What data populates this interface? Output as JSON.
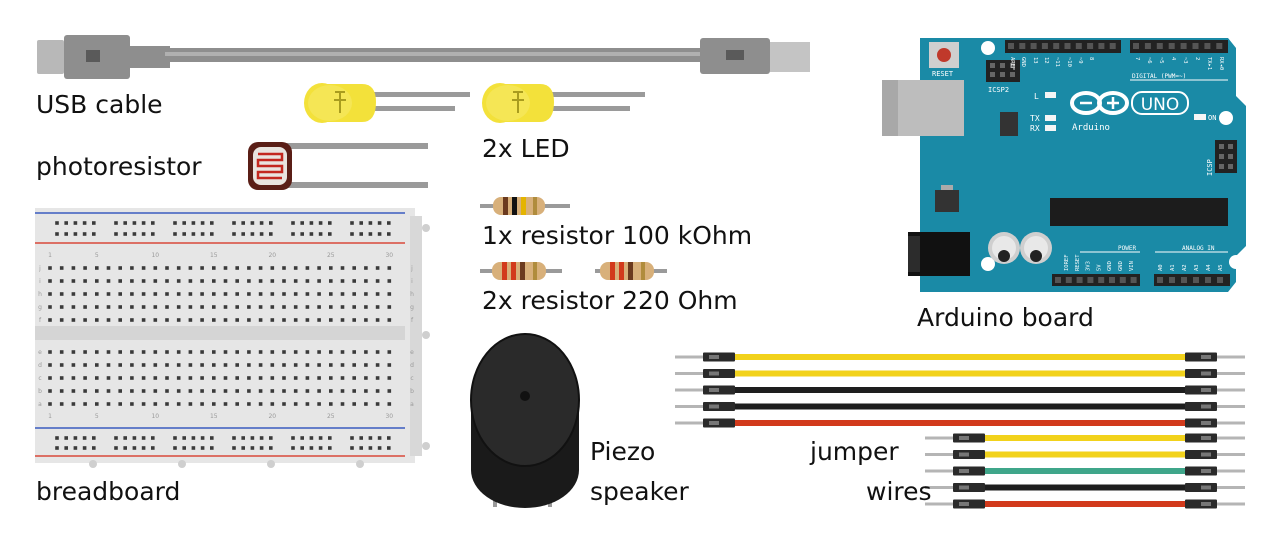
{
  "labels": {
    "usb_cable": "USB cable",
    "photoresistor": "photoresistor",
    "led": "2x LED",
    "resistor_100k": "1x resistor 100 kOhm",
    "resistor_220": "2x resistor 220 Ohm",
    "breadboard": "breadboard",
    "arduino": "Arduino board",
    "piezo_line1": "Piezo",
    "piezo_line2": "speaker",
    "jumper_line1": "jumper",
    "jumper_line2": "wires"
  },
  "breadboard": {
    "column_numbers": [
      "1",
      "5",
      "10",
      "15",
      "20",
      "25",
      "30"
    ],
    "row_letters_top": [
      "j",
      "i",
      "h",
      "g",
      "f"
    ],
    "row_letters_bottom": [
      "e",
      "d",
      "c",
      "b",
      "a"
    ]
  },
  "arduino": {
    "reset_label": "RESET",
    "icsp2_label": "ICSP2",
    "logo_text": "UNO",
    "brand_text": "Arduino",
    "digital_label": "DIGITAL (PWM=~)",
    "l_label": "L",
    "tx_label": "TX",
    "rx_label": "RX",
    "on_label": "ON",
    "icsp_label": "ICSP",
    "power_label": "POWER",
    "analog_label": "ANALOG IN",
    "top_pins": [
      "AREF",
      "GND",
      "13",
      "12",
      "~11",
      "~10",
      "~9",
      "8",
      "7",
      "~6",
      "~5",
      "4",
      "~3",
      "2",
      "TX▸1",
      "RX◂0"
    ],
    "power_pins": [
      "IOREF",
      "RESET",
      "3V3",
      "5V",
      "GND",
      "GND",
      "VIN"
    ],
    "analog_pins": [
      "A0",
      "A1",
      "A2",
      "A3",
      "A4",
      "A5"
    ]
  },
  "colors": {
    "arduino_board": "#1a8aa6",
    "led_yellow": "#f3e13a",
    "cable_gray": "#9a9a9a",
    "breadboard_body": "#e6e6e6",
    "rail_red": "#d9493a",
    "rail_blue": "#3a5bbf",
    "wire_yellow": "#f2d21b",
    "wire_black": "#1e1e1e",
    "wire_red": "#d23a1c",
    "wire_green": "#3fa68a",
    "piezo_black": "#1a1a1a"
  },
  "jumper_wires": {
    "long": [
      "yellow",
      "yellow",
      "black",
      "black",
      "red"
    ],
    "short": [
      "yellow",
      "yellow",
      "green",
      "black",
      "red"
    ]
  }
}
